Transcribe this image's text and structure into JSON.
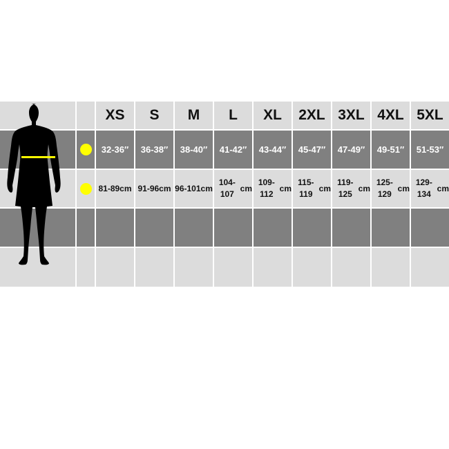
{
  "sizes": [
    "XS",
    "S",
    "M",
    "L",
    "XL",
    "2XL",
    "3XL",
    "4XL",
    "5XL"
  ],
  "chest_inches": [
    "32-36″",
    "36-38″",
    "38-40″",
    "41-42″",
    "43-44″",
    "45-47″",
    "47-49″",
    "49-51″",
    "51-53″"
  ],
  "chest_cm": [
    "81-89",
    "91-96",
    "96-101",
    "104-107",
    "109-112",
    "115-119",
    "119-125",
    "125-129",
    "129-134"
  ],
  "cm_unit": "cm",
  "colors": {
    "marker": "#ffff00",
    "light_row": "#dcdcdc",
    "dark_row": "#808080"
  },
  "icons": {
    "figure": "body-silhouette-icon",
    "marker": "yellow-dot-icon"
  }
}
